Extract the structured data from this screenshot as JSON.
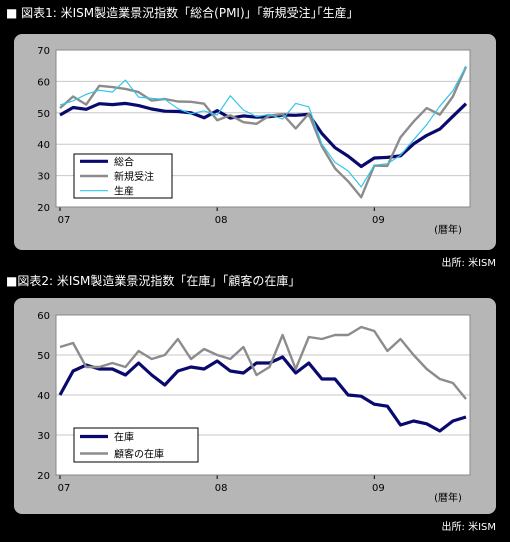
{
  "charts": [
    {
      "title": "■ 図表1: 米ISM製造業景況指数「総合(PMI)」｢新規受注｣｢生産｣",
      "source": "出所: 米ISM"
    },
    {
      "title": "■図表2: 米ISM製造業景況指数「在庫」「顧客の在庫」",
      "source": "出所: 米ISM"
    }
  ],
  "chart_data": [
    {
      "type": "line",
      "title": "図表1: 米ISM製造業景況指数「総合(PMI)」｢新規受注｣｢生産｣",
      "xlabel": "(暦年)",
      "ylabel": "",
      "ylim": [
        20,
        70
      ],
      "yticks": [
        "20",
        "30",
        "40",
        "50",
        "60",
        "70"
      ],
      "xticks": [
        "07",
        "08",
        "09"
      ],
      "xtick_index": [
        0,
        12,
        24
      ],
      "n_months": 32,
      "legend_position": "bottom-left",
      "series": [
        {
          "name": "総合",
          "color": "#0a0a6e",
          "width": 3.2,
          "values": [
            49.3,
            51.7,
            51.1,
            52.9,
            52.6,
            53.0,
            52.3,
            51.2,
            50.5,
            50.4,
            50.0,
            48.4,
            50.7,
            48.3,
            49.0,
            48.6,
            48.8,
            49.3,
            49.2,
            49.5,
            43.4,
            38.9,
            36.2,
            32.9,
            35.6,
            35.8,
            36.3,
            40.1,
            42.8,
            44.8,
            48.9,
            52.9
          ]
        },
        {
          "name": "新規受注",
          "color": "#8c8c8c",
          "width": 2.4,
          "values": [
            51.5,
            55.2,
            52.6,
            58.6,
            58.2,
            57.6,
            56.6,
            53.9,
            54.4,
            53.6,
            53.5,
            52.9,
            47.6,
            49.2,
            47.0,
            46.5,
            49.1,
            49.6,
            45.0,
            49.7,
            39.3,
            32.3,
            28.2,
            23.1,
            33.2,
            33.1,
            42.2,
            47.2,
            51.5,
            49.4,
            55.2,
            64.7
          ]
        },
        {
          "name": "生産",
          "color": "#34c6e8",
          "width": 1.2,
          "values": [
            52.5,
            53.8,
            55.9,
            57.2,
            56.6,
            60.4,
            55.0,
            54.6,
            54.3,
            51.3,
            49.7,
            50.6,
            49.3,
            55.4,
            50.9,
            48.8,
            49.5,
            48.0,
            53.0,
            51.9,
            40.0,
            34.2,
            31.5,
            26.4,
            33.3,
            33.8,
            36.5,
            41.4,
            46.2,
            52.1,
            57.0,
            64.8
          ]
        }
      ]
    },
    {
      "type": "line",
      "title": "図表2: 米ISM製造業景況指数「在庫」「顧客の在庫」",
      "xlabel": "(暦年)",
      "ylabel": "",
      "ylim": [
        20,
        60
      ],
      "yticks": [
        "20",
        "30",
        "40",
        "50",
        "60"
      ],
      "xticks": [
        "07",
        "08",
        "09"
      ],
      "xtick_index": [
        0,
        12,
        24
      ],
      "n_months": 32,
      "legend_position": "bottom-left",
      "series": [
        {
          "name": "在庫",
          "color": "#0a0a6e",
          "width": 3.2,
          "values": [
            40.0,
            46.0,
            47.5,
            46.5,
            46.5,
            45.0,
            48.0,
            45.0,
            42.5,
            46.0,
            47.0,
            46.5,
            48.5,
            46.0,
            45.5,
            48.0,
            48.0,
            49.5,
            45.5,
            48.0,
            44.0,
            44.0,
            40.0,
            39.7,
            37.7,
            37.2,
            32.5,
            33.5,
            32.8,
            31.0,
            33.5,
            34.5
          ]
        },
        {
          "name": "顧客の在庫",
          "color": "#8c8c8c",
          "width": 2.4,
          "values": [
            52.0,
            53.0,
            47.0,
            47.0,
            48.0,
            47.0,
            51.0,
            49.0,
            50.0,
            54.0,
            49.0,
            51.5,
            50.0,
            49.0,
            52.0,
            45.0,
            47.0,
            55.0,
            46.5,
            54.5,
            54.0,
            55.0,
            55.0,
            57.0,
            56.0,
            51.0,
            54.0,
            50.0,
            46.5,
            44.0,
            43.0,
            39.0
          ]
        }
      ]
    }
  ]
}
